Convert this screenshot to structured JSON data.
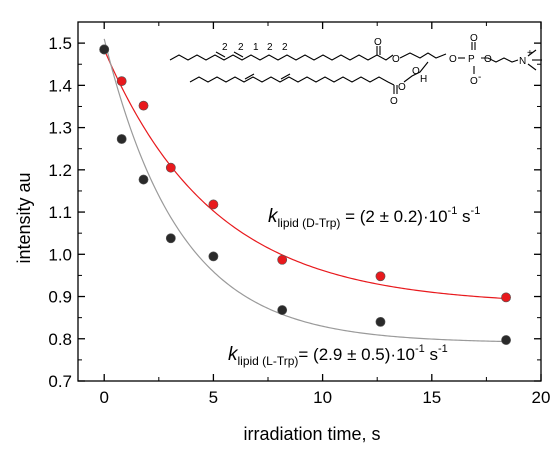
{
  "chart_data": {
    "type": "scatter",
    "xlabel": "irradiation time, s",
    "ylabel": "intensity au",
    "xlim": [
      -1.2,
      20
    ],
    "ylim": [
      0.7,
      1.55
    ],
    "x_ticks": [
      0,
      5,
      10,
      15,
      20
    ],
    "y_ticks": [
      0.7,
      0.8,
      0.9,
      1.0,
      1.1,
      1.2,
      1.3,
      1.4,
      1.5
    ],
    "x_tick_labels": [
      "0",
      "5",
      "10",
      "15",
      "20"
    ],
    "y_tick_labels": [
      "0.7",
      "0.8",
      "0.9",
      "1.0",
      "1.1",
      "1.2",
      "1.3",
      "1.4",
      "1.5"
    ],
    "grid": false,
    "series": [
      {
        "color": "#e8191d",
        "fit_color": "#e8191d",
        "x": [
          0,
          0.8,
          1.8,
          3.05,
          5.0,
          8.15,
          12.65,
          18.4
        ],
        "y": [
          1.485,
          1.41,
          1.352,
          1.205,
          1.118,
          0.987,
          0.948,
          0.898
        ],
        "fit": {
          "model": "exponential_decay",
          "a": 0.605,
          "k": 0.2,
          "c": 0.88
        }
      },
      {
        "color": "#2a2a2a",
        "fit_color": "#9a9a9a",
        "x": [
          0,
          0.8,
          1.8,
          3.05,
          5.0,
          8.15,
          12.65,
          18.4
        ],
        "y": [
          1.485,
          1.273,
          1.177,
          1.038,
          0.995,
          0.868,
          0.84,
          0.797
        ],
        "fit": {
          "model": "exponential_decay",
          "a": 0.72,
          "k": 0.29,
          "c": 0.79
        }
      }
    ],
    "annotations": {
      "d_trp": {
        "k": "k",
        "subscript": "lipid (D-Trp)",
        "value": " = (2 ± 0.2)·10",
        "exponent": "-1",
        "unit": " s",
        "unit_exponent": "-1"
      },
      "l_trp": {
        "k": "k",
        "subscript": "lipid (L-Trp)",
        "value": "= (2.9 ± 0.5)·10",
        "exponent": "-1",
        "unit": " s",
        "unit_exponent": "-1"
      }
    },
    "structure_labels": [
      "2",
      "2",
      "1",
      "2",
      "2",
      "O",
      "O",
      "H",
      "O",
      "O",
      "P",
      "O",
      "O",
      "N",
      "+",
      "O",
      "-",
      "O",
      "O"
    ]
  }
}
